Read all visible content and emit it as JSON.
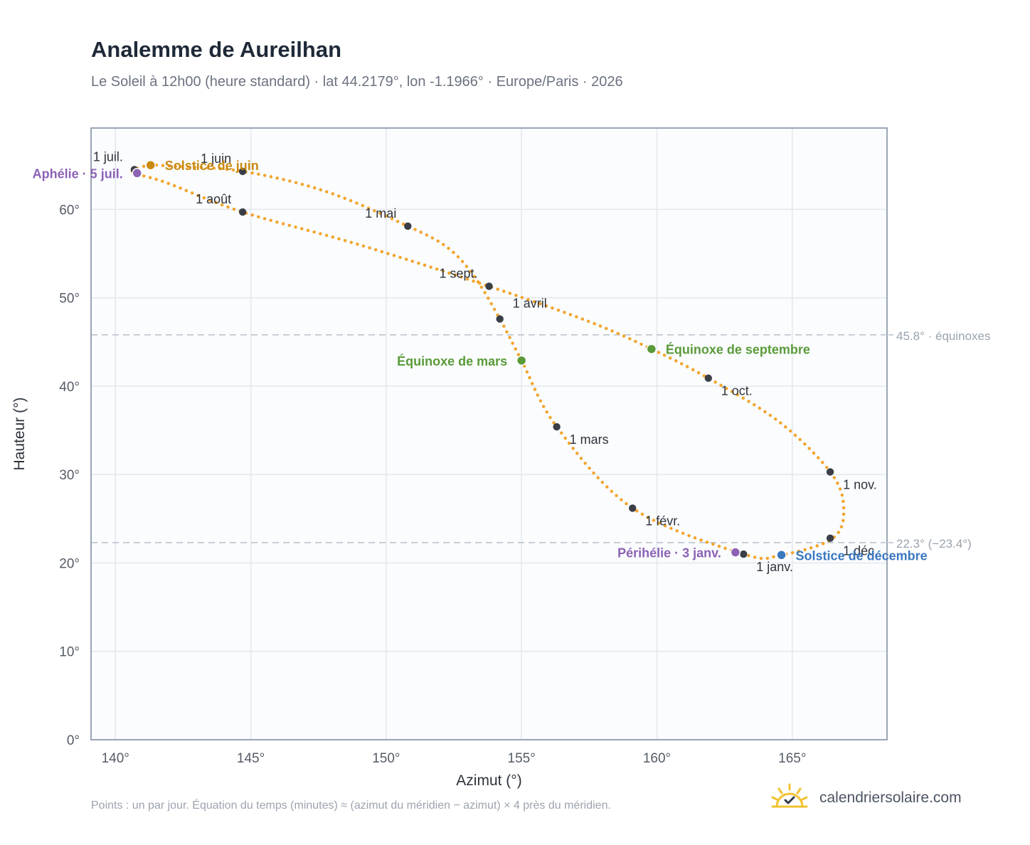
{
  "header": {
    "title": "Analemme de Aureilhan",
    "subtitle": "Le Soleil à 12h00 (heure standard) · lat 44.2179°, lon -1.1966° · Europe/Paris · 2026"
  },
  "footer": {
    "note": "Points : un par jour. Équation du temps (minutes) ≈ (azimut du méridien − azimut) × 4 près du méridien.",
    "brand": "calendriersolaire.com",
    "brand_icon": "sun-check-icon"
  },
  "colors": {
    "curve": "#f2a52d",
    "month_marker": "#3a3f47",
    "solstice_june": "#c9890e",
    "solstice_december": "#3a78bf",
    "equinox": "#5a9a3a",
    "apsis": "#8b62b5",
    "plot_bg": "#fafcfe",
    "grid": "#e3e8ee",
    "frame": "#9aa5b4",
    "ref_line": "#b6bfca"
  },
  "chart_data": {
    "type": "scatter",
    "xlabel": "Azimut (°)",
    "ylabel": "Hauteur (°)",
    "xlim": [
      139.1,
      168.5
    ],
    "ylim": [
      0,
      69.2
    ],
    "xticks": [
      140,
      145,
      150,
      155,
      160,
      165
    ],
    "yticks": [
      0,
      10,
      20,
      30,
      40,
      50,
      60
    ],
    "tick_suffix": "°",
    "grid": true,
    "path_points": [
      [
        163.2,
        21.0
      ],
      [
        159.1,
        26.2
      ],
      [
        156.3,
        35.4
      ],
      [
        155.0,
        42.9
      ],
      [
        154.2,
        47.6
      ],
      [
        153.3,
        52.2
      ],
      [
        152.3,
        55.6
      ],
      [
        150.8,
        58.1
      ],
      [
        147.8,
        62.0
      ],
      [
        144.7,
        64.3
      ],
      [
        142.0,
        64.9
      ],
      [
        141.3,
        65.0
      ],
      [
        140.8,
        64.6
      ],
      [
        140.7,
        64.1
      ],
      [
        141.9,
        63.0
      ],
      [
        144.7,
        59.7
      ],
      [
        149.0,
        56.0
      ],
      [
        153.8,
        51.3
      ],
      [
        157.5,
        47.3
      ],
      [
        159.8,
        44.2
      ],
      [
        161.9,
        40.9
      ],
      [
        164.5,
        36.0
      ],
      [
        166.4,
        30.3
      ],
      [
        166.9,
        26.3
      ],
      [
        166.5,
        22.8
      ],
      [
        164.6,
        20.9
      ],
      [
        163.2,
        21.0
      ]
    ],
    "months": [
      {
        "label": "1 janv.",
        "x": 163.2,
        "y": 21.0,
        "pos": "below-right"
      },
      {
        "label": "1 févr.",
        "x": 159.1,
        "y": 26.2,
        "pos": "below-right"
      },
      {
        "label": "1 mars",
        "x": 156.3,
        "y": 35.4,
        "pos": "below-right"
      },
      {
        "label": "1 avril",
        "x": 154.2,
        "y": 47.6,
        "pos": "above-right"
      },
      {
        "label": "1 mai",
        "x": 150.8,
        "y": 58.1,
        "pos": "above-left"
      },
      {
        "label": "1 juin",
        "x": 144.7,
        "y": 64.3,
        "pos": "above-left"
      },
      {
        "label": "1 juil.",
        "x": 140.7,
        "y": 64.5,
        "pos": "above-left"
      },
      {
        "label": "1 août",
        "x": 144.7,
        "y": 59.7,
        "pos": "above-left"
      },
      {
        "label": "1 sept.",
        "x": 153.8,
        "y": 51.3,
        "pos": "above-left"
      },
      {
        "label": "1 oct.",
        "x": 161.9,
        "y": 40.9,
        "pos": "below-right"
      },
      {
        "label": "1 nov.",
        "x": 166.4,
        "y": 30.3,
        "pos": "below-right"
      },
      {
        "label": "1 déc.",
        "x": 166.4,
        "y": 22.8,
        "pos": "below-right"
      }
    ],
    "events": [
      {
        "label": "Solstice de juin",
        "x": 141.3,
        "y": 65.0,
        "color": "#c9890e",
        "pos": "right"
      },
      {
        "label": "Aphélie · 5 juil.",
        "x": 140.8,
        "y": 64.1,
        "color": "#8b62b5",
        "pos": "left"
      },
      {
        "label": "Équinoxe de mars",
        "x": 155.0,
        "y": 42.9,
        "color": "#5a9a3a",
        "pos": "left"
      },
      {
        "label": "Équinoxe de septembre",
        "x": 159.8,
        "y": 44.2,
        "color": "#5a9a3a",
        "pos": "right"
      },
      {
        "label": "Périhélie · 3 janv.",
        "x": 162.9,
        "y": 21.2,
        "color": "#8b62b5",
        "pos": "left"
      },
      {
        "label": "Solstice de décembre",
        "x": 164.6,
        "y": 20.9,
        "color": "#3a78bf",
        "pos": "right"
      }
    ],
    "reference_lines": [
      {
        "y": 45.8,
        "label": "45.8° · équinoxes"
      },
      {
        "y": 22.3,
        "label": "22.3° (−23.4°)"
      }
    ]
  }
}
